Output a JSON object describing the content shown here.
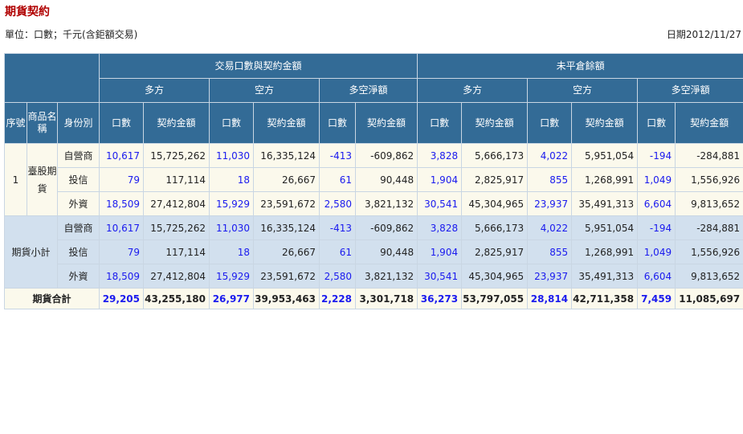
{
  "page": {
    "title": "期貨契約",
    "unit": "單位：口數；千元(含鉅額交易)",
    "date": "日期2012/11/27"
  },
  "headers": {
    "trading": "交易口數與契約金額",
    "open_interest": "未平倉餘額",
    "long": "多方",
    "short": "空方",
    "net": "多空淨額",
    "seq": "序號",
    "product": "商品名稱",
    "identity": "身份別",
    "lots": "口數",
    "amount": "契約金額"
  },
  "groups": [
    {
      "seq": "1",
      "product": "臺股期貨",
      "rows": [
        {
          "identity": "自營商",
          "values": [
            "10,617",
            "15,725,262",
            "11,030",
            "16,335,124",
            "-413",
            "-609,862",
            "3,828",
            "5,666,173",
            "4,022",
            "5,951,054",
            "-194",
            "-284,881"
          ]
        },
        {
          "identity": "投信",
          "values": [
            "79",
            "117,114",
            "18",
            "26,667",
            "61",
            "90,448",
            "1,904",
            "2,825,917",
            "855",
            "1,268,991",
            "1,049",
            "1,556,926"
          ]
        },
        {
          "identity": "外資",
          "values": [
            "18,509",
            "27,412,804",
            "15,929",
            "23,591,672",
            "2,580",
            "3,821,132",
            "30,541",
            "45,304,965",
            "23,937",
            "35,491,313",
            "6,604",
            "9,813,652"
          ]
        }
      ]
    },
    {
      "seq": "",
      "product": "期貨小計",
      "rows": [
        {
          "identity": "自營商",
          "values": [
            "10,617",
            "15,725,262",
            "11,030",
            "16,335,124",
            "-413",
            "-609,862",
            "3,828",
            "5,666,173",
            "4,022",
            "5,951,054",
            "-194",
            "-284,881"
          ]
        },
        {
          "identity": "投信",
          "values": [
            "79",
            "117,114",
            "18",
            "26,667",
            "61",
            "90,448",
            "1,904",
            "2,825,917",
            "855",
            "1,268,991",
            "1,049",
            "1,556,926"
          ]
        },
        {
          "identity": "外資",
          "values": [
            "18,509",
            "27,412,804",
            "15,929",
            "23,591,672",
            "2,580",
            "3,821,132",
            "30,541",
            "45,304,965",
            "23,937",
            "35,491,313",
            "6,604",
            "9,813,652"
          ]
        }
      ]
    }
  ],
  "total": {
    "label": "期貨合計",
    "values": [
      "29,205",
      "43,255,180",
      "26,977",
      "39,953,463",
      "2,228",
      "3,301,718",
      "36,273",
      "53,797,055",
      "28,814",
      "42,711,358",
      "7,459",
      "11,085,697"
    ]
  }
}
